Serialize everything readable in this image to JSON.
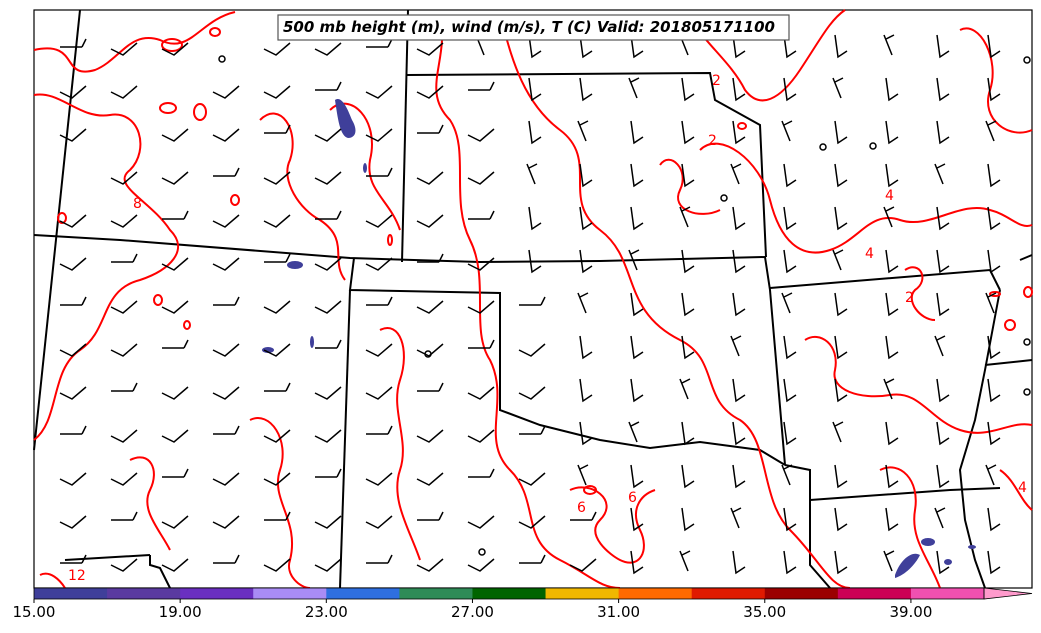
{
  "title": "500 mb height (m), wind (m/s), T (C) Valid: 201805171100",
  "colorbar": {
    "tick_labels": [
      "15.00",
      "19.00",
      "23.00",
      "27.00",
      "31.00",
      "35.00",
      "39.00"
    ],
    "tick_values": [
      15,
      19,
      23,
      27,
      31,
      35,
      39
    ],
    "range": [
      15,
      42
    ],
    "bands": [
      {
        "value": 15,
        "color": "#3f3f9a"
      },
      {
        "value": 17,
        "color": "#5a3aa0"
      },
      {
        "value": 19,
        "color": "#6a2fc0"
      },
      {
        "value": 21,
        "color": "#a98cf5"
      },
      {
        "value": 23,
        "color": "#2f6fe0"
      },
      {
        "value": 25,
        "color": "#2e8b57"
      },
      {
        "value": 27,
        "color": "#006400"
      },
      {
        "value": 29,
        "color": "#f0b800"
      },
      {
        "value": 31,
        "color": "#ff6a00"
      },
      {
        "value": 33,
        "color": "#e01a00"
      },
      {
        "value": 35,
        "color": "#9b0000"
      },
      {
        "value": 37,
        "color": "#cc0055"
      },
      {
        "value": 39,
        "color": "#f050b0"
      },
      {
        "value": 41,
        "color": "#ff9acc"
      }
    ]
  },
  "contour_labels": [
    "2",
    "2",
    "4",
    "4",
    "8",
    "2",
    "6",
    "6",
    "4",
    "12"
  ],
  "colors": {
    "temperature_contour": "#ff0000",
    "boundaries": "#000000",
    "wind_barbs": "#000000",
    "shading": "#3f3f9a"
  }
}
